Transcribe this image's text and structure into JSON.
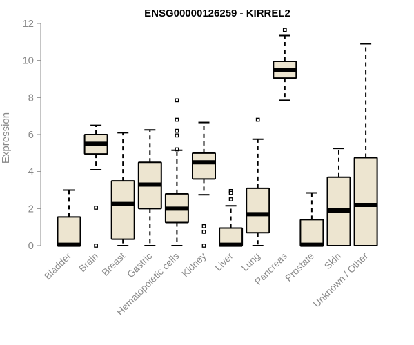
{
  "chart_data": {
    "type": "boxplot",
    "title": "ENSG00000126259 - KIRREL2",
    "xlabel": "",
    "ylabel": "Expression",
    "ylim": [
      0,
      12
    ],
    "yticks": [
      0,
      2,
      4,
      6,
      8,
      10,
      12
    ],
    "grid": false,
    "box_fill": "#ede5d0",
    "box_stroke": "#000000",
    "axis_color": "#8a8a8a",
    "categories": [
      "Bladder",
      "Brain",
      "Breast",
      "Gastric",
      "Hematopoietic cells",
      "Kidney",
      "Liver",
      "Lung",
      "Pancreas",
      "Prostate",
      "Skin",
      "Unknown / Other"
    ],
    "boxes": [
      {
        "name": "Bladder",
        "whisker_low": 0,
        "q1": 0,
        "median": 0.05,
        "q3": 1.55,
        "whisker_high": 3.0,
        "outliers": []
      },
      {
        "name": "Brain",
        "whisker_low": 4.1,
        "q1": 4.95,
        "median": 5.5,
        "q3": 6.0,
        "whisker_high": 6.5,
        "outliers": [
          2.05,
          0.0
        ]
      },
      {
        "name": "Breast",
        "whisker_low": 0,
        "q1": 0.35,
        "median": 2.25,
        "q3": 3.5,
        "whisker_high": 6.1,
        "outliers": []
      },
      {
        "name": "Gastric",
        "whisker_low": 0,
        "q1": 2.0,
        "median": 3.3,
        "q3": 4.5,
        "whisker_high": 6.25,
        "outliers": []
      },
      {
        "name": "Hematopoietic cells",
        "whisker_low": 0,
        "q1": 1.25,
        "median": 2.0,
        "q3": 2.8,
        "whisker_high": 5.15,
        "outliers": [
          7.85,
          6.8,
          6.2,
          5.95,
          5.2
        ]
      },
      {
        "name": "Kidney",
        "whisker_low": 2.75,
        "q1": 3.6,
        "median": 4.5,
        "q3": 5.0,
        "whisker_high": 6.65,
        "outliers": [
          1.05,
          0.75,
          0.0
        ]
      },
      {
        "name": "Liver",
        "whisker_low": 0,
        "q1": 0,
        "median": 0.05,
        "q3": 0.95,
        "whisker_high": 2.15,
        "outliers": [
          2.95,
          2.85,
          2.5
        ]
      },
      {
        "name": "Lung",
        "whisker_low": 0,
        "q1": 0.7,
        "median": 1.7,
        "q3": 3.1,
        "whisker_high": 5.75,
        "outliers": [
          6.8
        ]
      },
      {
        "name": "Pancreas",
        "whisker_low": 7.85,
        "q1": 9.05,
        "median": 9.5,
        "q3": 9.95,
        "whisker_high": 11.35,
        "outliers": [
          11.65
        ]
      },
      {
        "name": "Prostate",
        "whisker_low": 0,
        "q1": 0,
        "median": 0.05,
        "q3": 1.4,
        "whisker_high": 2.85,
        "outliers": []
      },
      {
        "name": "Skin",
        "whisker_low": 0,
        "q1": 0,
        "median": 1.9,
        "q3": 3.7,
        "whisker_high": 5.25,
        "outliers": []
      },
      {
        "name": "Unknown / Other",
        "whisker_low": 0,
        "q1": 0,
        "median": 2.2,
        "q3": 4.75,
        "whisker_high": 10.9,
        "outliers": []
      }
    ]
  }
}
